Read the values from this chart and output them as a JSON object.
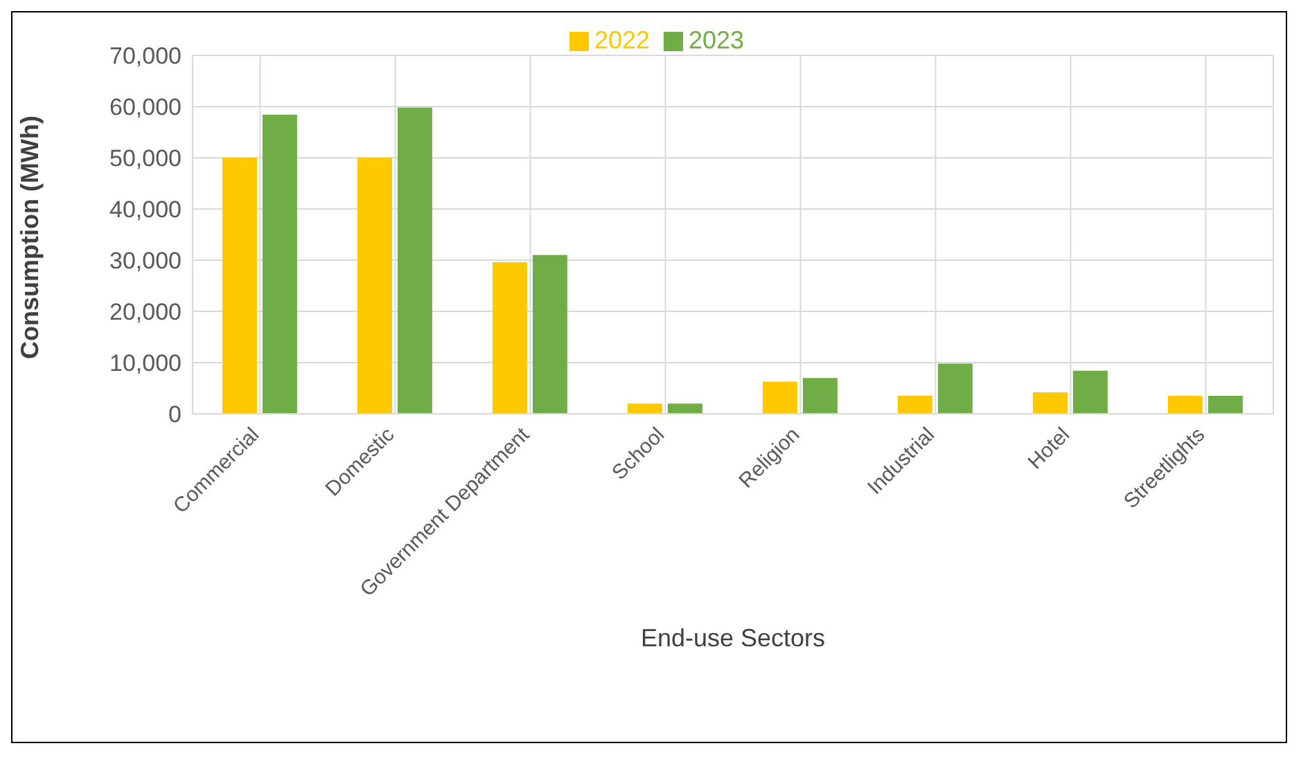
{
  "chart_data": {
    "type": "bar",
    "xlabel": "End-use Sectors",
    "ylabel": "Consumption (MWh)",
    "categories": [
      "Commercial",
      "Domestic",
      "Government Department",
      "School",
      "Religion",
      "Industrial",
      "Hotel",
      "Streetlights"
    ],
    "series": [
      {
        "name": "2022",
        "color": "#ffc900",
        "values": [
          50000,
          50000,
          29600,
          2000,
          6300,
          3500,
          4200,
          3500
        ]
      },
      {
        "name": "2023",
        "color": "#70ad47",
        "values": [
          58400,
          59800,
          31000,
          2000,
          7000,
          9800,
          8400,
          3500
        ]
      }
    ],
    "ylim": [
      0,
      70000
    ],
    "yticks": [
      {
        "value": 0,
        "label": "0"
      },
      {
        "value": 10000,
        "label": "10,000"
      },
      {
        "value": 20000,
        "label": "20,000"
      },
      {
        "value": 30000,
        "label": "30,000"
      },
      {
        "value": 40000,
        "label": "40,000"
      },
      {
        "value": 50000,
        "label": "50,000"
      },
      {
        "value": 60000,
        "label": "60,000"
      },
      {
        "value": 70000,
        "label": "70,000"
      }
    ],
    "grid": true,
    "legend": "top"
  }
}
